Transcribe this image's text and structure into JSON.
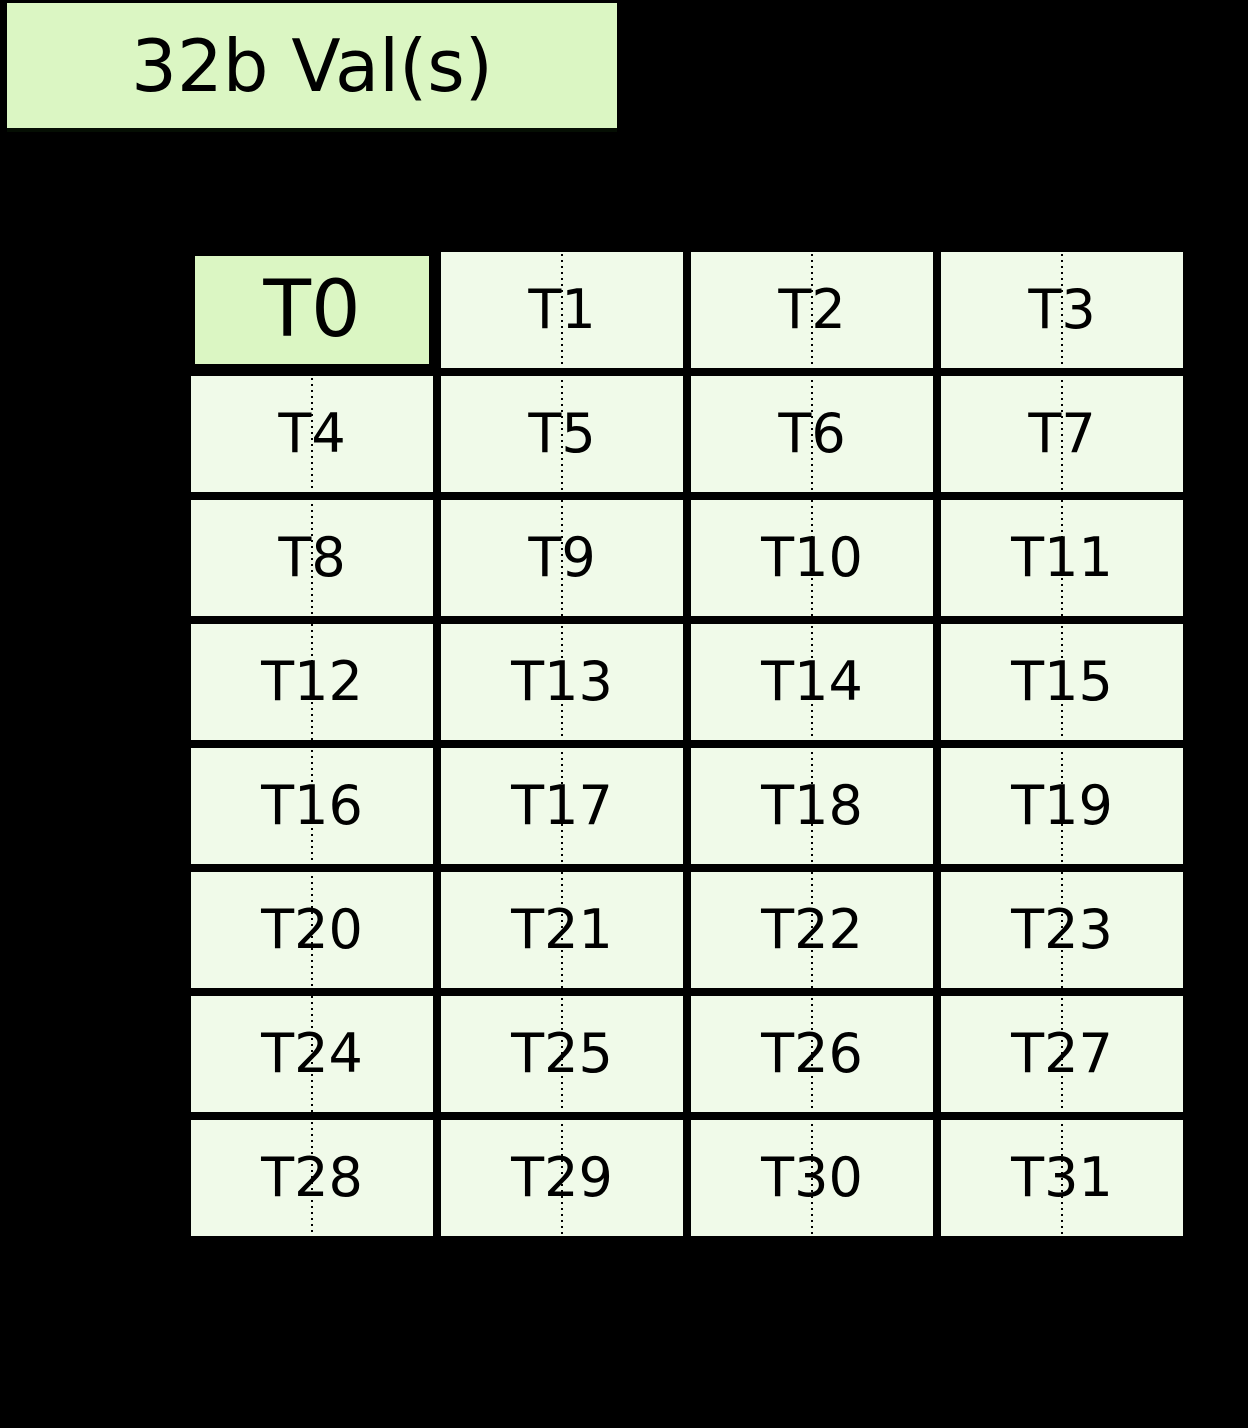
{
  "figure": {
    "background_color": "#000000"
  },
  "title_box": {
    "label": "32b Val(s)",
    "bg_color": "#dbf6c3"
  },
  "grid": {
    "rows": 8,
    "columns": 4,
    "cells": [
      "T0",
      "T1",
      "T2",
      "T3",
      "T4",
      "T5",
      "T6",
      "T7",
      "T8",
      "T9",
      "T10",
      "T11",
      "T12",
      "T13",
      "T14",
      "T15",
      "T16",
      "T17",
      "T18",
      "T19",
      "T20",
      "T21",
      "T22",
      "T23",
      "T24",
      "T25",
      "T26",
      "T27",
      "T28",
      "T29",
      "T30",
      "T31"
    ],
    "highlighted_cell": "T0",
    "cell_bg_color": "#f0fae9",
    "highlight_bg_color": "#dbf6c3",
    "border_color": "#000000"
  }
}
